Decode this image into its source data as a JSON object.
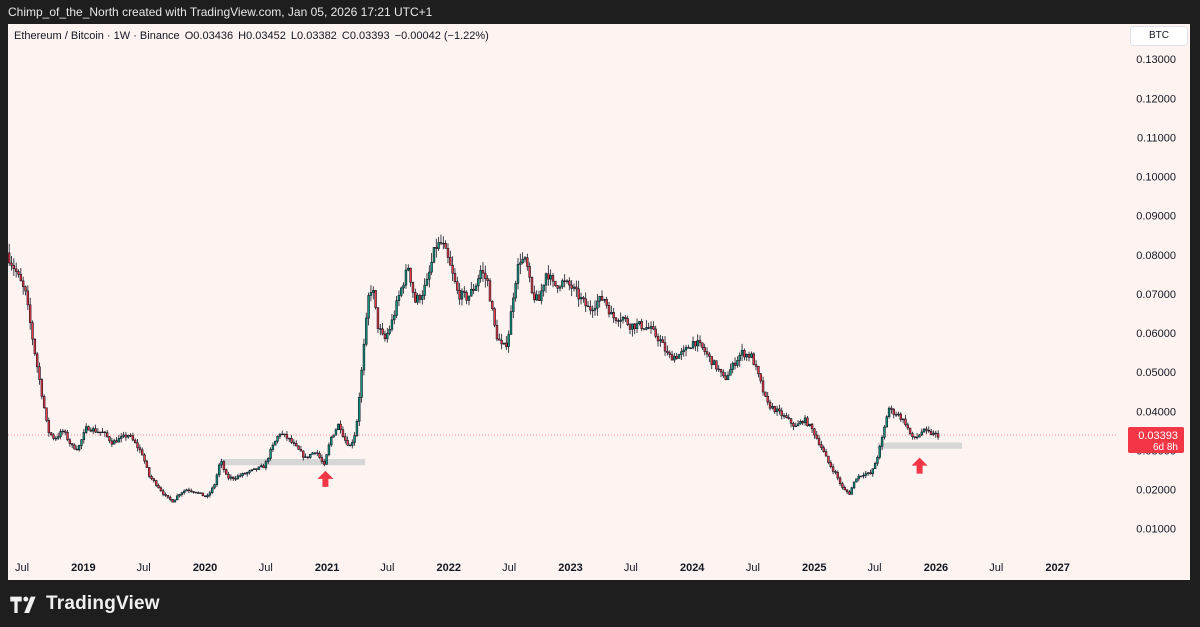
{
  "header": {
    "caption": "Chimp_of_the_North created with TradingView.com, Jan 05, 2026 17:21 UTC+1"
  },
  "legend": {
    "symbol": "Ethereum / Bitcoin · 1W · Binance",
    "open": "O0.03436",
    "high": "H0.03452",
    "low": "L0.03382",
    "close": "C0.03393",
    "change": "−0.00042 (−1.22%)"
  },
  "currency_button": "BTC",
  "price_label": {
    "price": "0.03393",
    "countdown": "6d 8h"
  },
  "footer": {
    "brand": "TradingView"
  },
  "colors": {
    "up": "#089981",
    "down": "#f23645",
    "price_line": "#f23645",
    "support_zone": "#d6d6d6",
    "arrow": "#f23645"
  },
  "chart_data": {
    "type": "candlestick",
    "title": "Ethereum / Bitcoin · 1W · Binance",
    "xlabel": "",
    "ylabel": "",
    "ylim": [
      0.003,
      0.139
    ],
    "xlim": [
      "2018-05-20",
      "2027-07-01"
    ],
    "y_axis_ticks": [
      "0.13000",
      "0.12000",
      "0.11000",
      "0.10000",
      "0.09000",
      "0.08000",
      "0.07000",
      "0.06000",
      "0.05000",
      "0.04000",
      "0.03000",
      "0.02000",
      "0.01000"
    ],
    "x_axis_ticks": [
      {
        "label": "Jul",
        "date": "2018-07-01",
        "bold": false
      },
      {
        "label": "2019",
        "date": "2019-01-01",
        "bold": true
      },
      {
        "label": "Jul",
        "date": "2019-07-01",
        "bold": false
      },
      {
        "label": "2020",
        "date": "2020-01-01",
        "bold": true
      },
      {
        "label": "Jul",
        "date": "2020-07-01",
        "bold": false
      },
      {
        "label": "2021",
        "date": "2021-01-01",
        "bold": true
      },
      {
        "label": "Jul",
        "date": "2021-07-01",
        "bold": false
      },
      {
        "label": "2022",
        "date": "2022-01-01",
        "bold": true
      },
      {
        "label": "Jul",
        "date": "2022-07-01",
        "bold": false
      },
      {
        "label": "2023",
        "date": "2023-01-01",
        "bold": true
      },
      {
        "label": "Jul",
        "date": "2023-07-01",
        "bold": false
      },
      {
        "label": "2024",
        "date": "2024-01-01",
        "bold": true
      },
      {
        "label": "Jul",
        "date": "2024-07-01",
        "bold": false
      },
      {
        "label": "2025",
        "date": "2025-01-01",
        "bold": true
      },
      {
        "label": "Jul",
        "date": "2025-07-01",
        "bold": false
      },
      {
        "label": "2026",
        "date": "2026-01-01",
        "bold": true
      },
      {
        "label": "Jul",
        "date": "2026-07-01",
        "bold": false
      },
      {
        "label": "2027",
        "date": "2027-01-01",
        "bold": true
      }
    ],
    "path_points": [
      [
        "2018-05-20",
        0.0805
      ],
      [
        "2018-06-15",
        0.076
      ],
      [
        "2018-07-15",
        0.07
      ],
      [
        "2018-08-10",
        0.056
      ],
      [
        "2018-09-05",
        0.043
      ],
      [
        "2018-09-20",
        0.035
      ],
      [
        "2018-10-10",
        0.033
      ],
      [
        "2018-11-05",
        0.035
      ],
      [
        "2018-12-01",
        0.031
      ],
      [
        "2018-12-20",
        0.0305
      ],
      [
        "2019-01-15",
        0.036
      ],
      [
        "2019-02-10",
        0.035
      ],
      [
        "2019-03-05",
        0.0345
      ],
      [
        "2019-04-01",
        0.032
      ],
      [
        "2019-04-25",
        0.033
      ],
      [
        "2019-05-20",
        0.034
      ],
      [
        "2019-06-15",
        0.031
      ],
      [
        "2019-07-01",
        0.029
      ],
      [
        "2019-07-20",
        0.0235
      ],
      [
        "2019-08-15",
        0.021
      ],
      [
        "2019-09-10",
        0.018
      ],
      [
        "2019-09-30",
        0.017
      ],
      [
        "2019-10-20",
        0.019
      ],
      [
        "2019-11-10",
        0.02
      ],
      [
        "2019-12-05",
        0.0195
      ],
      [
        "2020-01-10",
        0.018
      ],
      [
        "2020-02-01",
        0.021
      ],
      [
        "2020-02-20",
        0.0275
      ],
      [
        "2020-03-10",
        0.023
      ],
      [
        "2020-04-01",
        0.023
      ],
      [
        "2020-05-01",
        0.024
      ],
      [
        "2020-06-01",
        0.025
      ],
      [
        "2020-07-01",
        0.026
      ],
      [
        "2020-07-20",
        0.03
      ],
      [
        "2020-08-15",
        0.0345
      ],
      [
        "2020-09-10",
        0.033
      ],
      [
        "2020-10-01",
        0.031
      ],
      [
        "2020-11-01",
        0.028
      ],
      [
        "2020-12-01",
        0.03
      ],
      [
        "2020-12-27",
        0.026
      ],
      [
        "2021-01-15",
        0.033
      ],
      [
        "2021-02-10",
        0.037
      ],
      [
        "2021-02-25",
        0.033
      ],
      [
        "2021-03-15",
        0.031
      ],
      [
        "2021-04-01",
        0.035
      ],
      [
        "2021-04-20",
        0.052
      ],
      [
        "2021-05-10",
        0.07
      ],
      [
        "2021-05-20",
        0.072
      ],
      [
        "2021-06-05",
        0.062
      ],
      [
        "2021-06-25",
        0.058
      ],
      [
        "2021-07-15",
        0.062
      ],
      [
        "2021-08-10",
        0.07
      ],
      [
        "2021-09-05",
        0.077
      ],
      [
        "2021-09-25",
        0.068
      ],
      [
        "2021-10-15",
        0.07
      ],
      [
        "2021-11-01",
        0.073
      ],
      [
        "2021-11-25",
        0.082
      ],
      [
        "2021-12-15",
        0.083
      ],
      [
        "2022-01-05",
        0.078
      ],
      [
        "2022-02-01",
        0.07
      ],
      [
        "2022-03-01",
        0.069
      ],
      [
        "2022-03-25",
        0.072
      ],
      [
        "2022-04-10",
        0.076
      ],
      [
        "2022-05-01",
        0.073
      ],
      [
        "2022-05-25",
        0.06
      ],
      [
        "2022-06-15",
        0.056
      ],
      [
        "2022-06-30",
        0.058
      ],
      [
        "2022-07-20",
        0.072
      ],
      [
        "2022-08-05",
        0.079
      ],
      [
        "2022-08-25",
        0.078
      ],
      [
        "2022-09-10",
        0.07
      ],
      [
        "2022-10-01",
        0.068
      ],
      [
        "2022-10-25",
        0.076
      ],
      [
        "2022-11-15",
        0.072
      ],
      [
        "2022-12-10",
        0.073
      ],
      [
        "2023-01-05",
        0.072
      ],
      [
        "2023-02-01",
        0.069
      ],
      [
        "2023-03-01",
        0.066
      ],
      [
        "2023-03-25",
        0.068
      ],
      [
        "2023-04-15",
        0.069
      ],
      [
        "2023-05-10",
        0.064
      ],
      [
        "2023-06-10",
        0.064
      ],
      [
        "2023-07-01",
        0.062
      ],
      [
        "2023-08-01",
        0.062
      ],
      [
        "2023-09-01",
        0.061
      ],
      [
        "2023-10-01",
        0.058
      ],
      [
        "2023-10-25",
        0.054
      ],
      [
        "2023-11-15",
        0.054
      ],
      [
        "2023-12-10",
        0.055
      ],
      [
        "2024-01-10",
        0.058
      ],
      [
        "2024-02-05",
        0.056
      ],
      [
        "2024-03-01",
        0.053
      ],
      [
        "2024-03-20",
        0.051
      ],
      [
        "2024-04-10",
        0.048
      ],
      [
        "2024-05-15",
        0.053
      ],
      [
        "2024-06-01",
        0.055
      ],
      [
        "2024-07-01",
        0.054
      ],
      [
        "2024-07-25",
        0.048
      ],
      [
        "2024-08-15",
        0.042
      ],
      [
        "2024-09-15",
        0.04
      ],
      [
        "2024-10-15",
        0.038
      ],
      [
        "2024-11-10",
        0.036
      ],
      [
        "2024-12-05",
        0.038
      ],
      [
        "2025-01-01",
        0.035
      ],
      [
        "2025-01-25",
        0.031
      ],
      [
        "2025-02-15",
        0.027
      ],
      [
        "2025-03-10",
        0.024
      ],
      [
        "2025-04-01",
        0.02
      ],
      [
        "2025-04-20",
        0.019
      ],
      [
        "2025-05-10",
        0.023
      ],
      [
        "2025-06-01",
        0.024
      ],
      [
        "2025-06-25",
        0.024
      ],
      [
        "2025-07-15",
        0.029
      ],
      [
        "2025-07-30",
        0.034
      ],
      [
        "2025-08-15",
        0.041
      ],
      [
        "2025-08-25",
        0.04
      ],
      [
        "2025-09-15",
        0.039
      ],
      [
        "2025-10-05",
        0.037
      ],
      [
        "2025-10-25",
        0.033
      ],
      [
        "2025-11-10",
        0.0335
      ],
      [
        "2025-11-25",
        0.035
      ],
      [
        "2025-12-15",
        0.0345
      ],
      [
        "2026-01-05",
        0.0339
      ]
    ],
    "last_price": 0.03393,
    "support_zones": [
      {
        "x_start": "2020-02-15",
        "x_end": "2021-04-25",
        "y_low": 0.0262,
        "y_high": 0.0278
      },
      {
        "x_start": "2025-07-10",
        "x_end": "2026-03-20",
        "y_low": 0.0304,
        "y_high": 0.032
      }
    ],
    "arrows": [
      {
        "date": "2020-12-27",
        "y_tip": 0.0268,
        "direction": "up"
      },
      {
        "date": "2025-11-13",
        "y_tip": 0.0302,
        "direction": "up"
      }
    ]
  }
}
